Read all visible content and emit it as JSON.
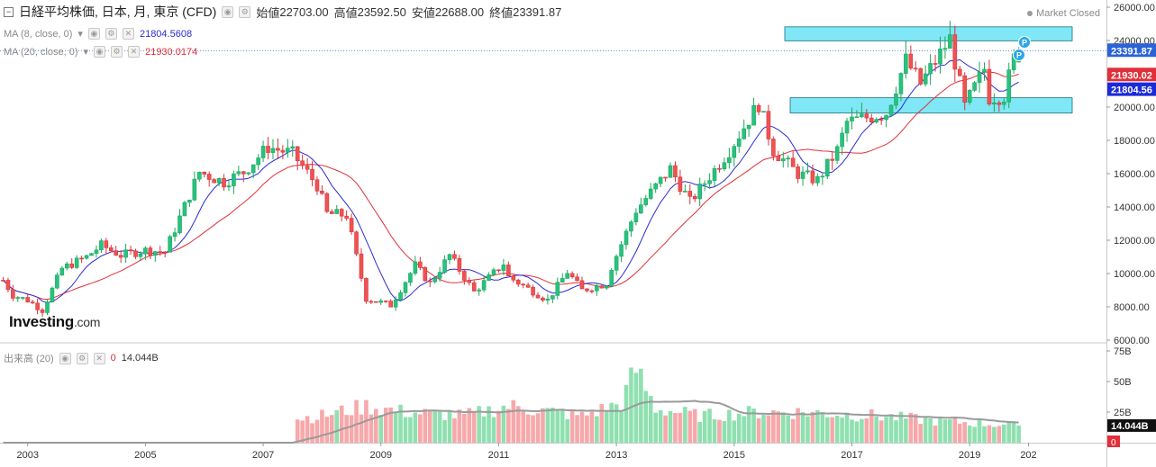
{
  "header": {
    "title": "日経平均株価, 日本, 月, 東京 (CFD)",
    "open_label": "始値",
    "open_value": "22703.00",
    "high_label": "高値",
    "high_value": "23592.50",
    "low_label": "安値",
    "low_value": "22688.00",
    "close_label": "終値",
    "close_value": "23391.87",
    "market_status": "Market Closed"
  },
  "indicators": {
    "ma8": {
      "label": "MA (8, close, 0)",
      "value": "21804.5608",
      "color": "#2b2bd3"
    },
    "ma20": {
      "label": "MA (20, close, 0)",
      "value": "21930.0174",
      "color": "#e0303a"
    },
    "volume": {
      "label": "出来高 (20)",
      "zero": "0",
      "value": "14.044B"
    }
  },
  "brand": {
    "name": "Investing",
    "suffix": ".com"
  },
  "colors": {
    "up": "#1ea85a",
    "up_fill": "#26c281",
    "down": "#d9343d",
    "down_fill": "#ef5350",
    "vol_up": "#8fe0b0",
    "vol_down": "#f7a8aa",
    "vol_ma": "#9a9a9a",
    "zone": "#7fe7f5",
    "zone_border": "#1b6f80",
    "price_label_bg": "#2b63d6",
    "ma20_label_bg": "#e0303a",
    "ma8_label_bg": "#1c2bd8",
    "p_marker": "#2aa7e8"
  },
  "chart_data": [
    {
      "type": "candlestick",
      "title": "日経平均株価, 日本, 月, 東京 (CFD)",
      "interval": "monthly",
      "x_ticks": [
        "2003",
        "2005",
        "2007",
        "2009",
        "2011",
        "2013",
        "2015",
        "2017",
        "2019",
        "202"
      ],
      "y_ticks": [
        "26000.00",
        "24000.00",
        "22000.00",
        "20000.00",
        "18000.00",
        "16000.00",
        "14000.00",
        "12000.00",
        "10000.00",
        "8000.00",
        "6000.00"
      ],
      "ylim": [
        6000,
        26000
      ],
      "price_labels": {
        "last": "23391.87",
        "ma20": "21930.02",
        "ma8": "21804.56"
      },
      "close_anchors": [
        [
          "2002-08",
          9600
        ],
        [
          "2002-10",
          8700
        ],
        [
          "2003-01",
          8400
        ],
        [
          "2003-04",
          7800
        ],
        [
          "2003-08",
          10300
        ],
        [
          "2004-01",
          11000
        ],
        [
          "2004-04",
          11700
        ],
        [
          "2004-08",
          11100
        ],
        [
          "2005-01",
          11400
        ],
        [
          "2005-05",
          11300
        ],
        [
          "2005-12",
          16100
        ],
        [
          "2006-05",
          15500
        ],
        [
          "2006-09",
          16100
        ],
        [
          "2007-02",
          17600
        ],
        [
          "2007-07",
          17200
        ],
        [
          "2007-12",
          15300
        ],
        [
          "2008-02",
          13600
        ],
        [
          "2008-06",
          13500
        ],
        [
          "2008-10",
          8500
        ],
        [
          "2009-03",
          8100
        ],
        [
          "2009-08",
          10500
        ],
        [
          "2009-11",
          9400
        ],
        [
          "2010-03",
          11100
        ],
        [
          "2010-08",
          8900
        ],
        [
          "2011-02",
          10600
        ],
        [
          "2011-03",
          9800
        ],
        [
          "2011-11",
          8400
        ],
        [
          "2012-03",
          10100
        ],
        [
          "2012-06",
          9000
        ],
        [
          "2012-11",
          9400
        ],
        [
          "2012-12",
          10400
        ],
        [
          "2013-05",
          13800
        ],
        [
          "2013-12",
          16300
        ],
        [
          "2014-04",
          14300
        ],
        [
          "2014-12",
          17400
        ],
        [
          "2015-06",
          20200
        ],
        [
          "2015-09",
          17400
        ],
        [
          "2016-02",
          16000
        ],
        [
          "2016-06",
          15600
        ],
        [
          "2016-10",
          17400
        ],
        [
          "2016-12",
          19100
        ],
        [
          "2017-08",
          19650
        ],
        [
          "2017-12",
          22800
        ],
        [
          "2018-03",
          21400
        ],
        [
          "2018-09",
          24100
        ],
        [
          "2018-12",
          20000
        ],
        [
          "2019-04",
          22300
        ],
        [
          "2019-05",
          20600
        ],
        [
          "2019-08",
          20700
        ],
        [
          "2019-10",
          22900
        ],
        [
          "2019-11",
          23391.87
        ]
      ],
      "resistance_zone": [
        23980,
        24820
      ],
      "support_zone": [
        19640,
        20560
      ],
      "markers": [
        "P",
        "P"
      ]
    },
    {
      "type": "bar",
      "title": "出来高 (20)",
      "y_ticks": [
        "75B",
        "50B",
        "25B",
        "0"
      ],
      "ylim": [
        0,
        75
      ],
      "unit": "B",
      "last_label": "14.044B",
      "zero_label": "0",
      "volume_anchors": [
        [
          "2002-08",
          0
        ],
        [
          "2007-07",
          0
        ],
        [
          "2007-08",
          20
        ],
        [
          "2008-01",
          22
        ],
        [
          "2008-10",
          30
        ],
        [
          "2009-06",
          25
        ],
        [
          "2010-06",
          22
        ],
        [
          "2011-03",
          30
        ],
        [
          "2012-06",
          22
        ],
        [
          "2013-02",
          32
        ],
        [
          "2013-05",
          60
        ],
        [
          "2013-09",
          28
        ],
        [
          "2014-06",
          22
        ],
        [
          "2015-06",
          25
        ],
        [
          "2016-03",
          25
        ],
        [
          "2017-06",
          22
        ],
        [
          "2018-06",
          18
        ],
        [
          "2019-11",
          14.044
        ]
      ]
    }
  ]
}
